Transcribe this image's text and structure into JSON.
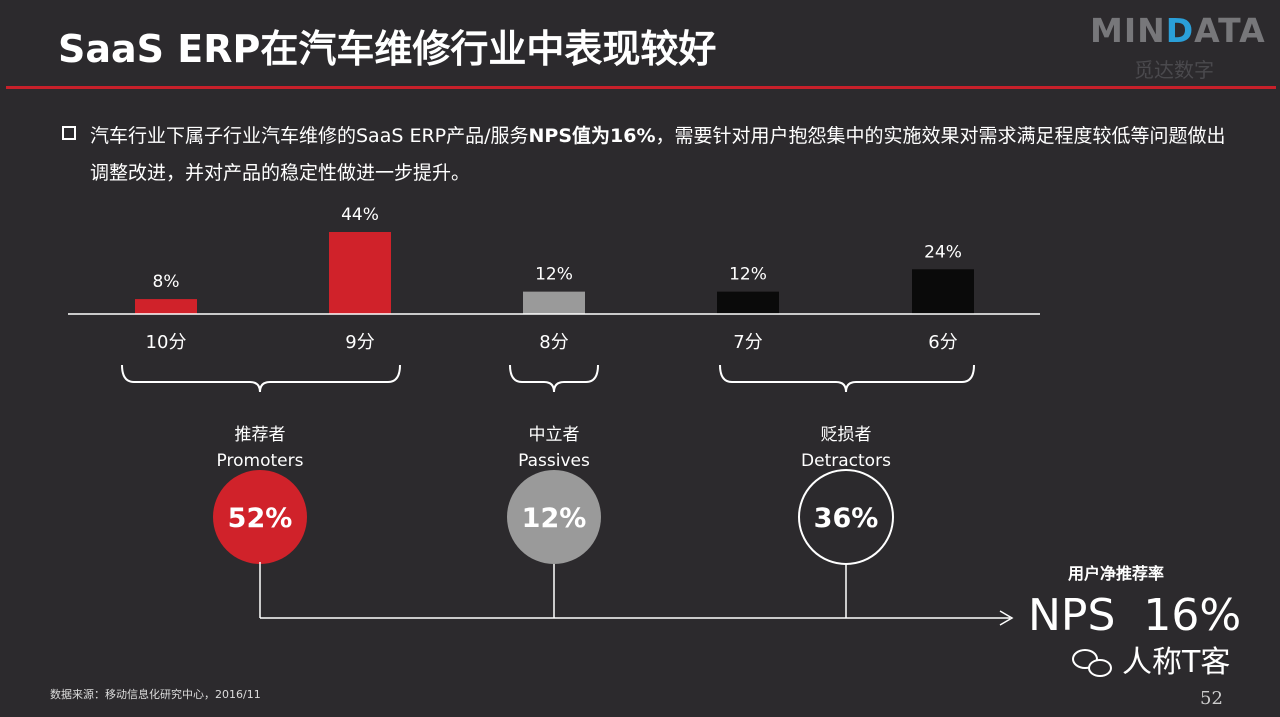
{
  "title": "SaaS ERP在汽车维修行业中表现较好",
  "logo": {
    "text": "MINDATA",
    "cn": "觅达数字"
  },
  "bullet": {
    "pre": "汽车行业下属子行业汽车维修的SaaS ERP产品/服务",
    "bold": "NPS值为16%",
    "post": "，需要针对用户抱怨集中的实施效果对需求满足程度较低等问题做出调整改进，并对产品的稳定性做进一步提升。"
  },
  "colors": {
    "promoter": "#d0222a",
    "passive": "#9a9a9a",
    "detractor": "#0a0a0a",
    "accent": "#c8202a"
  },
  "chart_data": {
    "type": "bar",
    "categories": [
      "10分",
      "9分",
      "8分",
      "7分",
      "6分"
    ],
    "values": [
      8,
      44,
      12,
      12,
      24
    ],
    "value_labels": [
      "8%",
      "44%",
      "12%",
      "12%",
      "24%"
    ],
    "groups": [
      "promoter",
      "promoter",
      "passive",
      "detractor",
      "detractor"
    ],
    "ylim": [
      0,
      50
    ],
    "summary": [
      {
        "cn": "推荐者",
        "en": "Promoters",
        "value": "52%"
      },
      {
        "cn": "中立者",
        "en": "Passives",
        "value": "12%"
      },
      {
        "cn": "贬损者",
        "en": "Detractors",
        "value": "36%"
      }
    ]
  },
  "nps": {
    "label": "用户净推荐率",
    "value": "NPS  16%"
  },
  "watermark": "人称T客",
  "source": "数据来源：移动信息化研究中心，2016/11",
  "page_number": "52"
}
